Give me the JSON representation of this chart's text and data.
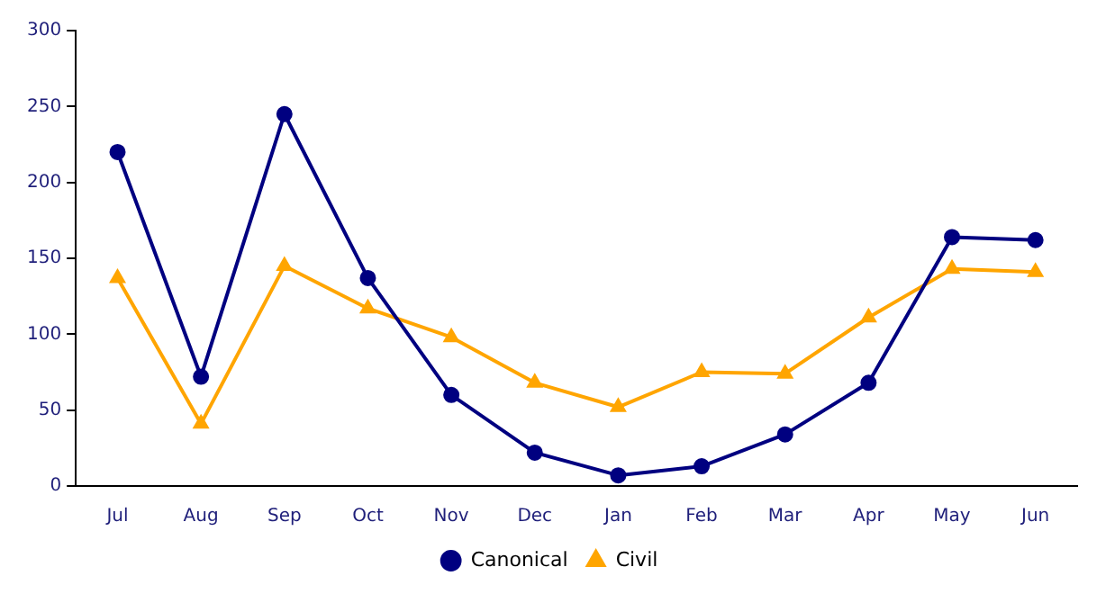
{
  "chart_data": {
    "type": "line",
    "categories": [
      "Jul",
      "Aug",
      "Sep",
      "Oct",
      "Nov",
      "Dec",
      "Jan",
      "Feb",
      "Mar",
      "Apr",
      "May",
      "Jun"
    ],
    "series": [
      {
        "name": "Canonical",
        "color": "#000080",
        "marker": "circle",
        "values": [
          220,
          72,
          245,
          137,
          60,
          22,
          7,
          13,
          34,
          68,
          164,
          162
        ]
      },
      {
        "name": "Civil",
        "color": "#ffa500",
        "marker": "triangle",
        "values": [
          137,
          41,
          145,
          117,
          98,
          68,
          52,
          75,
          74,
          111,
          143,
          141
        ]
      }
    ],
    "ylim": [
      0,
      300
    ],
    "yticks": [
      0,
      50,
      100,
      150,
      200,
      250,
      300
    ],
    "grid": false,
    "legend": "bottom"
  }
}
